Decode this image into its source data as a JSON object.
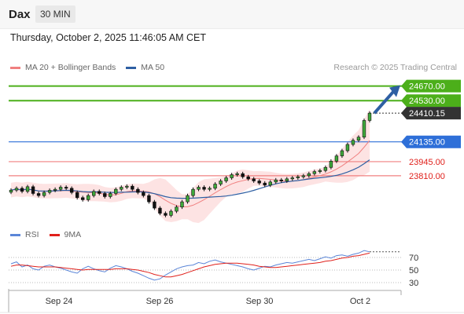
{
  "header": {
    "symbol": "Dax",
    "timeframe": "30 MIN"
  },
  "datetime": "Thursday, October 2, 2025 11:46:05 AM CET",
  "legend": [
    {
      "label": "MA 20 + Bollinger Bands",
      "color": "#f08080"
    },
    {
      "label": "MA 50",
      "color": "#2e5fa3"
    }
  ],
  "credit": "Research © 2025 Trading Central",
  "rsi_legend": [
    {
      "label": "RSI",
      "color": "#5b86d8"
    },
    {
      "label": "9MA",
      "color": "#e0201b"
    }
  ],
  "chart_data": [
    {
      "type": "candlestick",
      "x_tick_labels": [
        "Sep 24",
        "Sep 26",
        "Sep 30",
        "Oct 2"
      ],
      "levels": [
        {
          "value": 24670.0,
          "label": "24670.00",
          "color": "#4caf1a",
          "style": "solid",
          "badge": true
        },
        {
          "value": 24530.0,
          "label": "24530.00",
          "color": "#4caf1a",
          "style": "solid",
          "badge": true
        },
        {
          "value": 24410.15,
          "label": "24410.15",
          "color": "#333333",
          "style": "dotted",
          "badge": true
        },
        {
          "value": 24135.0,
          "label": "24135.00",
          "color": "#2e6fd8",
          "style": "solid",
          "badge": true
        },
        {
          "value": 23945.0,
          "label": "23945.00",
          "color": "#f08080",
          "style": "solid",
          "badge": false
        },
        {
          "value": 23810.0,
          "label": "23810.00",
          "color": "#f08080",
          "style": "solid",
          "badge": false
        }
      ],
      "ylim": [
        23350,
        24780
      ],
      "trend_arrow": "up",
      "close_series": [
        23672,
        23690,
        23660,
        23705,
        23640,
        23620,
        23650,
        23670,
        23680,
        23700,
        23690,
        23650,
        23600,
        23580,
        23620,
        23660,
        23640,
        23610,
        23640,
        23680,
        23700,
        23710,
        23680,
        23650,
        23620,
        23560,
        23500,
        23450,
        23430,
        23470,
        23510,
        23560,
        23620,
        23680,
        23700,
        23680,
        23690,
        23730,
        23760,
        23790,
        23820,
        23830,
        23800,
        23780,
        23760,
        23740,
        23720,
        23750,
        23770,
        23760,
        23780,
        23790,
        23800,
        23810,
        23830,
        23850,
        23860,
        23890,
        23950,
        24000,
        24050,
        24110,
        24150,
        24180,
        24340,
        24410
      ]
    },
    {
      "type": "line",
      "ylim": [
        20,
        90
      ],
      "y_ticks": [
        70,
        50,
        30
      ],
      "series": [
        {
          "name": "RSI",
          "color": "#5b86d8",
          "values": [
            60,
            63,
            55,
            58,
            52,
            50,
            56,
            58,
            55,
            53,
            50,
            47,
            45,
            52,
            56,
            52,
            49,
            47,
            53,
            57,
            55,
            52,
            48,
            45,
            41,
            37,
            34,
            36,
            42,
            47,
            52,
            55,
            57,
            58,
            62,
            60,
            64,
            66,
            63,
            61,
            59,
            57,
            55,
            52,
            50,
            53,
            56,
            55,
            58,
            60,
            62,
            61,
            63,
            65,
            67,
            65,
            68,
            71,
            69,
            73,
            74,
            72,
            75,
            77,
            81,
            79
          ]
        },
        {
          "name": "9MA",
          "color": "#e0201b",
          "values": [
            56,
            58,
            58,
            57,
            56,
            55,
            55,
            55,
            55,
            54,
            53,
            52,
            51,
            50,
            51,
            51,
            51,
            51,
            51,
            52,
            52,
            52,
            51,
            50,
            48,
            46,
            43,
            41,
            39,
            39,
            41,
            43,
            46,
            49,
            52,
            55,
            57,
            59,
            60,
            61,
            61,
            61,
            60,
            59,
            58,
            56,
            55,
            54,
            54,
            55,
            56,
            57,
            58,
            59,
            60,
            61,
            62,
            64,
            65,
            67,
            69,
            70,
            72,
            73,
            75,
            77
          ]
        }
      ]
    }
  ]
}
